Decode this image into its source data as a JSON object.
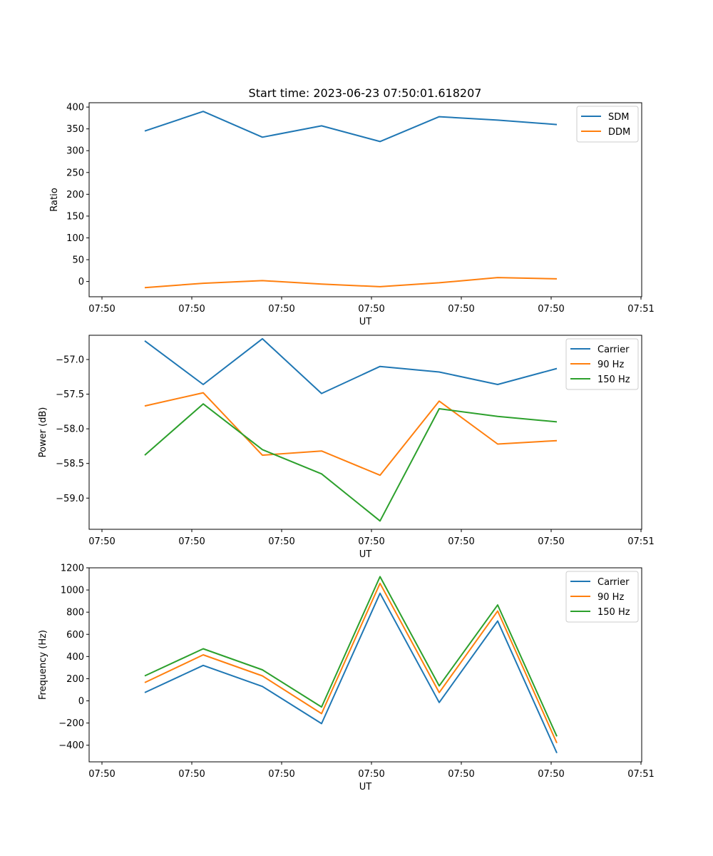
{
  "figure": {
    "title": "Start time: 2023-06-23 07:50:01.618207"
  },
  "chart_data": [
    {
      "type": "line",
      "xlabel": "UT",
      "ylabel": "Ratio",
      "x_tick_labels": [
        "07:50",
        "07:50",
        "07:50",
        "07:50",
        "07:50",
        "07:50",
        "07:51"
      ],
      "ylim": [
        -35,
        410
      ],
      "yticks": [
        0,
        50,
        100,
        150,
        200,
        250,
        300,
        350,
        400
      ],
      "legend_position": "top-right",
      "series": [
        {
          "name": "SDM",
          "color": "#1f77b4",
          "values": [
            345,
            390,
            331,
            357,
            321,
            378,
            370,
            360
          ]
        },
        {
          "name": "DDM",
          "color": "#ff7f0e",
          "values": [
            -14,
            -4,
            2,
            -6,
            -12,
            -3,
            9,
            6
          ]
        }
      ]
    },
    {
      "type": "line",
      "xlabel": "UT",
      "ylabel": "Power (dB)",
      "x_tick_labels": [
        "07:50",
        "07:50",
        "07:50",
        "07:50",
        "07:50",
        "07:50",
        "07:51"
      ],
      "ylim": [
        -59.45,
        -56.65
      ],
      "yticks": [
        -59.0,
        -58.5,
        -58.0,
        -57.5,
        -57.0
      ],
      "ytick_labels": [
        "−59.0",
        "−58.5",
        "−58.0",
        "−57.5",
        "−57.0"
      ],
      "legend_position": "top-right",
      "series": [
        {
          "name": "Carrier",
          "color": "#1f77b4",
          "values": [
            -56.73,
            -57.36,
            -56.7,
            -57.49,
            -57.1,
            -57.18,
            -57.36,
            -57.13
          ]
        },
        {
          "name": "90 Hz",
          "color": "#ff7f0e",
          "values": [
            -57.67,
            -57.48,
            -58.38,
            -58.32,
            -58.67,
            -57.6,
            -58.22,
            -58.17
          ]
        },
        {
          "name": "150 Hz",
          "color": "#2ca02c",
          "values": [
            -58.38,
            -57.64,
            -58.3,
            -58.65,
            -59.33,
            -57.71,
            -57.82,
            -57.9
          ]
        }
      ]
    },
    {
      "type": "line",
      "xlabel": "UT",
      "ylabel": "Frequency (Hz)",
      "x_tick_labels": [
        "07:50",
        "07:50",
        "07:50",
        "07:50",
        "07:50",
        "07:50",
        "07:51"
      ],
      "ylim": [
        -550,
        1200
      ],
      "yticks": [
        -400,
        -200,
        0,
        200,
        400,
        600,
        800,
        1000,
        1200
      ],
      "ytick_labels": [
        "−400",
        "−200",
        "0",
        "200",
        "400",
        "600",
        "800",
        "1000",
        "1200"
      ],
      "legend_position": "top-right",
      "series": [
        {
          "name": "Carrier",
          "color": "#1f77b4",
          "values": [
            75,
            320,
            130,
            -205,
            970,
            -15,
            720,
            -470
          ]
        },
        {
          "name": "90 Hz",
          "color": "#ff7f0e",
          "values": [
            165,
            415,
            225,
            -115,
            1060,
            75,
            810,
            -380
          ]
        },
        {
          "name": "150 Hz",
          "color": "#2ca02c",
          "values": [
            225,
            470,
            280,
            -55,
            1120,
            135,
            865,
            -320
          ]
        }
      ]
    }
  ]
}
